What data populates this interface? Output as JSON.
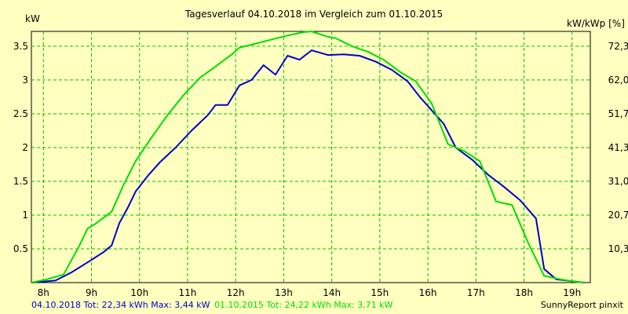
{
  "chart_data": {
    "type": "line",
    "title": "Tagesverlauf 04.10.2018 im Vergleich zum 01.10.2015",
    "ylabel_left": "kW",
    "ylabel_right": "kW/kWp [%]",
    "xlim": [
      7.75,
      19.38
    ],
    "ylim": [
      0,
      3.72
    ],
    "x_ticks": [
      8,
      9,
      10,
      11,
      12,
      13,
      14,
      15,
      16,
      17,
      18,
      19
    ],
    "x_tick_labels": [
      "8h",
      "9h",
      "10h",
      "11h",
      "12h",
      "13h",
      "14h",
      "15h",
      "16h",
      "17h",
      "18h",
      "19h"
    ],
    "y_ticks_left": [
      0.5,
      1,
      1.5,
      2,
      2.5,
      3,
      3.5
    ],
    "y_tick_labels_left": [
      "0.5",
      "1",
      "1.5",
      "2",
      "2.5",
      "3",
      "3.5"
    ],
    "y_ticks_right": [
      0.5,
      1,
      1.5,
      2,
      2.5,
      3,
      3.5
    ],
    "y_tick_labels_right": [
      "10,3",
      "20,7",
      "31,0",
      "41,3",
      "51,7",
      "62,0",
      "72,3"
    ],
    "grid": true,
    "series": [
      {
        "name": "04.10.2018",
        "color": "#0000cc",
        "x": [
          7.75,
          8.25,
          8.58,
          8.92,
          9.25,
          9.42,
          9.58,
          9.75,
          9.92,
          10.17,
          10.42,
          10.75,
          11.08,
          11.42,
          11.58,
          11.83,
          12.08,
          12.33,
          12.58,
          12.83,
          13.08,
          13.33,
          13.58,
          13.92,
          14.25,
          14.58,
          14.92,
          15.25,
          15.58,
          15.83,
          16.08,
          16.33,
          16.58,
          16.92,
          17.25,
          17.58,
          17.92,
          18.25,
          18.42,
          18.67,
          19.0,
          19.25
        ],
        "y": [
          0.0,
          0.03,
          0.15,
          0.3,
          0.45,
          0.55,
          0.88,
          1.1,
          1.35,
          1.58,
          1.78,
          2.0,
          2.25,
          2.48,
          2.63,
          2.63,
          2.92,
          3.0,
          3.22,
          3.08,
          3.36,
          3.3,
          3.44,
          3.37,
          3.38,
          3.36,
          3.27,
          3.15,
          2.98,
          2.75,
          2.55,
          2.35,
          2.0,
          1.82,
          1.6,
          1.42,
          1.22,
          0.95,
          0.2,
          0.05,
          0.02,
          0.0
        ]
      },
      {
        "name": "01.10.2015",
        "color": "#00dd00",
        "x": [
          7.75,
          8.08,
          8.42,
          8.75,
          8.92,
          9.08,
          9.42,
          9.67,
          9.92,
          10.25,
          10.58,
          10.92,
          11.25,
          11.58,
          11.92,
          12.08,
          12.42,
          12.75,
          13.08,
          13.42,
          13.58,
          13.92,
          14.08,
          14.42,
          14.75,
          15.08,
          15.42,
          15.75,
          16.08,
          16.42,
          16.75,
          17.08,
          17.42,
          17.75,
          18.08,
          18.42,
          18.75,
          19.08,
          19.25
        ],
        "y": [
          0.0,
          0.05,
          0.12,
          0.55,
          0.8,
          0.87,
          1.05,
          1.45,
          1.8,
          2.15,
          2.48,
          2.78,
          3.03,
          3.2,
          3.38,
          3.48,
          3.54,
          3.6,
          3.66,
          3.71,
          3.72,
          3.64,
          3.62,
          3.5,
          3.42,
          3.3,
          3.12,
          2.98,
          2.65,
          2.05,
          1.95,
          1.8,
          1.2,
          1.15,
          0.6,
          0.1,
          0.05,
          0.01,
          0.0
        ]
      }
    ]
  },
  "footer": {
    "series1_text": "04.10.2018 Tot: 22,34 kWh Max: 3,44 kW",
    "series2_text": "01.10.2015 Tot: 24,22 kWh Max: 3,71 kW",
    "series1_color": "#0000cc",
    "series2_color": "#00dd00",
    "credit": "SunnyReport pinxit"
  }
}
